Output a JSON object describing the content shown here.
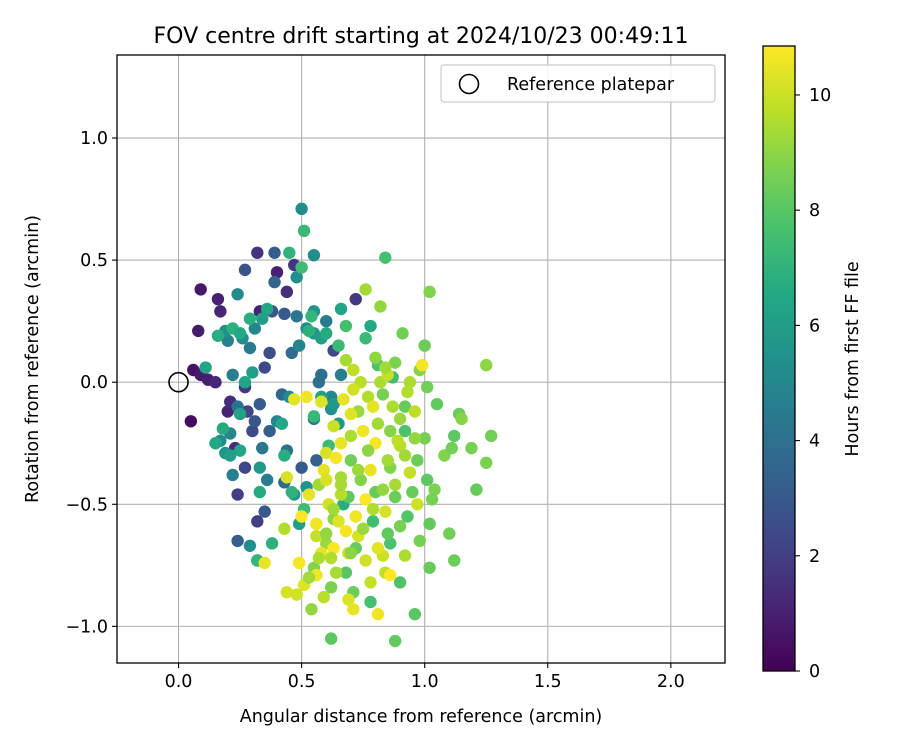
{
  "chart_data": {
    "type": "scatter",
    "title": "FOV centre drift starting at 2024/10/23 00:49:11",
    "xlabel": "Angular distance from reference (arcmin)",
    "ylabel": "Rotation from reference (arcmin)",
    "xlim": [
      -0.25,
      2.22
    ],
    "ylim": [
      -1.15,
      1.34
    ],
    "xticks": [
      0.0,
      0.5,
      1.0,
      1.5,
      2.0
    ],
    "xtick_labels": [
      "0.0",
      "0.5",
      "1.0",
      "1.5",
      "2.0"
    ],
    "yticks": [
      -1.0,
      -0.5,
      0.0,
      0.5,
      1.0
    ],
    "ytick_labels": [
      "−1.0",
      "−0.5",
      "0.0",
      "0.5",
      "1.0"
    ],
    "grid": true,
    "legend": {
      "position": "top-right",
      "entries": [
        {
          "label": "Reference platepar",
          "marker": "open-circle"
        }
      ]
    },
    "reference_point": {
      "x": 0.0,
      "y": 0.0,
      "label": "Reference platepar"
    },
    "colorbar": {
      "label": "Hours from first FF file",
      "colormap": "viridis",
      "range": [
        0,
        10.85
      ],
      "ticks": [
        0,
        2,
        4,
        6,
        8,
        10
      ],
      "tick_labels": [
        "0",
        "2",
        "4",
        "6",
        "8",
        "10"
      ]
    },
    "points": [
      [
        0.06,
        0.05,
        0.5
      ],
      [
        0.09,
        0.38,
        0.7
      ],
      [
        0.08,
        0.21,
        0.8
      ],
      [
        0.09,
        0.03,
        0.8
      ],
      [
        0.12,
        0.01,
        0.9
      ],
      [
        0.16,
        0.34,
        1.0
      ],
      [
        0.17,
        0.29,
        1.1
      ],
      [
        0.05,
        -0.16,
        0.3
      ],
      [
        0.15,
        0.0,
        1.2
      ],
      [
        0.2,
        -0.12,
        1.0
      ],
      [
        0.23,
        -0.27,
        1.3
      ],
      [
        0.24,
        -0.46,
        2.0
      ],
      [
        0.21,
        -0.08,
        1.4
      ],
      [
        0.32,
        0.53,
        1.6
      ],
      [
        0.33,
        0.29,
        1.0
      ],
      [
        0.27,
        0.46,
        2.8
      ],
      [
        0.24,
        -0.65,
        3.2
      ],
      [
        0.27,
        -0.02,
        1.8
      ],
      [
        0.28,
        -0.12,
        2.2
      ],
      [
        0.3,
        -0.2,
        2.5
      ],
      [
        0.35,
        -0.53,
        3.0
      ],
      [
        0.32,
        -0.57,
        2.0
      ],
      [
        0.39,
        0.53,
        3.2
      ],
      [
        0.4,
        0.45,
        1.0
      ],
      [
        0.44,
        0.37,
        1.5
      ],
      [
        0.47,
        0.48,
        1.7
      ],
      [
        0.39,
        0.41,
        3.5
      ],
      [
        0.38,
        0.29,
        2.8
      ],
      [
        0.43,
        0.28,
        3.0
      ],
      [
        0.37,
        0.12,
        2.6
      ],
      [
        0.35,
        0.06,
        2.4
      ],
      [
        0.33,
        -0.09,
        3.1
      ],
      [
        0.31,
        -0.16,
        2.9
      ],
      [
        0.37,
        -0.2,
        3.3
      ],
      [
        0.27,
        -0.35,
        2.3
      ],
      [
        0.42,
        -0.05,
        3.6
      ],
      [
        0.46,
        0.12,
        3.8
      ],
      [
        0.48,
        0.27,
        4.2
      ],
      [
        0.5,
        -0.35,
        3.1
      ],
      [
        0.56,
        -0.32,
        3.4
      ],
      [
        0.57,
        0.0,
        4.1
      ],
      [
        0.58,
        0.03,
        3.9
      ],
      [
        0.63,
        0.13,
        2.4
      ],
      [
        0.72,
        0.34,
        1.8
      ],
      [
        0.55,
        -0.15,
        4.4
      ],
      [
        0.43,
        -0.41,
        3.7
      ],
      [
        0.44,
        -0.28,
        4.0
      ],
      [
        0.34,
        -0.27,
        4.3
      ],
      [
        0.29,
        0.14,
        4.5
      ],
      [
        0.24,
        0.36,
        5.1
      ],
      [
        0.22,
        0.03,
        4.6
      ],
      [
        0.2,
        0.17,
        4.8
      ],
      [
        0.19,
        0.21,
        5.5
      ],
      [
        0.26,
        0.18,
        5.2
      ],
      [
        0.31,
        0.22,
        4.9
      ],
      [
        0.24,
        -0.1,
        4.1
      ],
      [
        0.21,
        -0.21,
        5.0
      ],
      [
        0.17,
        -0.24,
        5.3
      ],
      [
        0.19,
        -0.29,
        5.6
      ],
      [
        0.22,
        -0.38,
        4.7
      ],
      [
        0.33,
        -0.35,
        5.8
      ],
      [
        0.32,
        -0.73,
        5.9
      ],
      [
        0.29,
        -0.67,
        5.4
      ],
      [
        0.36,
        -0.4,
        4.6
      ],
      [
        0.4,
        -0.16,
        5.0
      ],
      [
        0.45,
        -0.06,
        5.1
      ],
      [
        0.49,
        0.15,
        4.9
      ],
      [
        0.52,
        0.22,
        5.2
      ],
      [
        0.55,
        0.29,
        5.6
      ],
      [
        0.48,
        0.43,
        5.4
      ],
      [
        0.5,
        0.71,
        5.2
      ],
      [
        0.55,
        0.52,
        5.3
      ],
      [
        0.55,
        0.2,
        5.7
      ],
      [
        0.58,
        0.18,
        6.0
      ],
      [
        0.6,
        0.25,
        4.5
      ],
      [
        0.62,
        -0.06,
        5.0
      ],
      [
        0.62,
        -0.11,
        5.4
      ],
      [
        0.52,
        -0.43,
        5.5
      ],
      [
        0.47,
        -0.46,
        5.8
      ],
      [
        0.49,
        -0.58,
        6.1
      ],
      [
        0.63,
        -0.09,
        5.8
      ],
      [
        0.58,
        -0.06,
        6.2
      ],
      [
        0.65,
        -0.17,
        5.9
      ],
      [
        0.66,
        0.03,
        4.6
      ],
      [
        0.3,
        0.04,
        6.1
      ],
      [
        0.27,
        0.0,
        6.3
      ],
      [
        0.25,
        -0.13,
        6.2
      ],
      [
        0.25,
        -0.28,
        6.4
      ],
      [
        0.21,
        -0.3,
        6.0
      ],
      [
        0.15,
        -0.25,
        6.5
      ],
      [
        0.18,
        -0.19,
        6.6
      ],
      [
        0.11,
        0.06,
        6.3
      ],
      [
        0.16,
        0.19,
        6.7
      ],
      [
        0.22,
        0.22,
        6.9
      ],
      [
        0.25,
        0.2,
        6.5
      ],
      [
        0.29,
        0.26,
        6.8
      ],
      [
        0.34,
        0.26,
        6.1
      ],
      [
        0.36,
        0.3,
        6.4
      ],
      [
        0.45,
        0.53,
        7.0
      ],
      [
        0.51,
        0.62,
        7.2
      ],
      [
        0.5,
        0.47,
        7.4
      ],
      [
        0.54,
        0.27,
        7.1
      ],
      [
        0.6,
        0.2,
        6.6
      ],
      [
        0.66,
        0.3,
        6.3
      ],
      [
        0.65,
        0.15,
        7.3
      ],
      [
        0.68,
        0.23,
        7.6
      ],
      [
        0.53,
        0.21,
        6.9
      ],
      [
        0.43,
        -0.3,
        6.7
      ],
      [
        0.42,
        -0.17,
        6.5
      ],
      [
        0.33,
        -0.45,
        6.6
      ],
      [
        0.32,
        -0.73,
        7.1
      ],
      [
        0.38,
        -0.66,
        6.9
      ],
      [
        0.46,
        -0.45,
        7.0
      ],
      [
        0.55,
        -0.14,
        7.2
      ],
      [
        0.51,
        -0.52,
        7.4
      ],
      [
        0.61,
        -0.26,
        7.3
      ],
      [
        0.67,
        -0.5,
        6.8
      ],
      [
        0.79,
        -0.57,
        7.5
      ],
      [
        0.76,
        0.18,
        7.3
      ],
      [
        0.78,
        0.23,
        6.5
      ],
      [
        0.84,
        0.51,
        7.6
      ],
      [
        0.81,
        0.07,
        7.8
      ],
      [
        0.87,
        0.02,
        7.5
      ],
      [
        0.92,
        -0.2,
        7.7
      ],
      [
        0.93,
        -0.55,
        7.9
      ],
      [
        0.86,
        -0.66,
        7.7
      ],
      [
        0.9,
        -0.82,
        7.8
      ],
      [
        0.78,
        -0.9,
        7.6
      ],
      [
        0.62,
        -1.05,
        8.1
      ],
      [
        0.88,
        -1.06,
        8.2
      ],
      [
        0.96,
        -0.95,
        8.0
      ],
      [
        1.02,
        -0.76,
        8.3
      ],
      [
        1.12,
        -0.73,
        8.4
      ],
      [
        1.1,
        -0.62,
        8.5
      ],
      [
        1.02,
        -0.58,
        8.2
      ],
      [
        0.98,
        -0.65,
        8.6
      ],
      [
        0.95,
        -0.45,
        8.3
      ],
      [
        1.01,
        -0.4,
        8.1
      ],
      [
        1.04,
        -0.44,
        8.7
      ],
      [
        1.03,
        -0.48,
        8.6
      ],
      [
        1.08,
        -0.3,
        8.8
      ],
      [
        1.11,
        -0.27,
        8.5
      ],
      [
        1.14,
        -0.13,
        8.4
      ],
      [
        1.15,
        -0.15,
        8.9
      ],
      [
        1.12,
        -0.22,
        8.1
      ],
      [
        1.19,
        -0.27,
        8.6
      ],
      [
        1.21,
        -0.44,
        8.3
      ],
      [
        1.25,
        -0.33,
        8.7
      ],
      [
        1.27,
        -0.22,
        8.5
      ],
      [
        1.25,
        0.07,
        9.0
      ],
      [
        1.02,
        0.37,
        8.8
      ],
      [
        1.0,
        0.15,
        8.4
      ],
      [
        0.98,
        0.05,
        8.9
      ],
      [
        1.01,
        -0.02,
        8.5
      ],
      [
        1.05,
        -0.09,
        8.2
      ],
      [
        1.0,
        -0.23,
        8.6
      ],
      [
        0.97,
        -0.32,
        8.4
      ],
      [
        0.92,
        -0.1,
        8.3
      ],
      [
        0.88,
        0.08,
        8.7
      ],
      [
        0.91,
        0.2,
        8.5
      ],
      [
        0.82,
        0.31,
        9.1
      ],
      [
        0.76,
        0.38,
        9.3
      ],
      [
        0.8,
        0.1,
        9.0
      ],
      [
        0.83,
        -0.05,
        8.6
      ],
      [
        0.86,
        -0.2,
        8.9
      ],
      [
        0.86,
        -0.35,
        8.8
      ],
      [
        0.88,
        -0.47,
        8.4
      ],
      [
        0.9,
        -0.59,
        8.6
      ],
      [
        0.85,
        -0.62,
        8.2
      ],
      [
        0.8,
        -0.45,
        8.3
      ],
      [
        0.74,
        -0.4,
        8.8
      ],
      [
        0.7,
        -0.32,
        8.5
      ],
      [
        0.69,
        -0.47,
        8.1
      ],
      [
        0.72,
        -0.68,
        8.3
      ],
      [
        0.68,
        -0.78,
        8.0
      ],
      [
        0.71,
        -0.86,
        8.4
      ],
      [
        0.62,
        -0.84,
        8.7
      ],
      [
        0.55,
        -0.76,
        8.8
      ],
      [
        0.54,
        -0.93,
        9.1
      ],
      [
        0.6,
        -0.66,
        9.2
      ],
      [
        0.63,
        -0.56,
        9.0
      ],
      [
        0.57,
        -0.42,
        9.3
      ],
      [
        0.66,
        -0.39,
        9.4
      ],
      [
        0.7,
        -0.22,
        9.5
      ],
      [
        0.73,
        -0.12,
        9.2
      ],
      [
        0.77,
        -0.06,
        9.6
      ],
      [
        0.74,
        0.0,
        9.7
      ],
      [
        0.68,
        0.09,
        9.4
      ],
      [
        0.71,
        0.05,
        9.8
      ],
      [
        0.82,
        0.0,
        9.5
      ],
      [
        0.85,
        0.03,
        9.9
      ],
      [
        0.93,
        -0.04,
        9.6
      ],
      [
        0.96,
        -0.12,
        9.8
      ],
      [
        0.9,
        -0.26,
        9.7
      ],
      [
        0.94,
        -0.37,
        9.9
      ],
      [
        0.97,
        -0.5,
        10.0
      ],
      [
        0.92,
        -0.71,
        9.5
      ],
      [
        0.84,
        -0.78,
        9.8
      ],
      [
        0.83,
        -0.71,
        10.0
      ],
      [
        0.78,
        -0.82,
        9.9
      ],
      [
        0.76,
        -0.73,
        10.1
      ],
      [
        0.73,
        -0.63,
        10.2
      ],
      [
        0.69,
        -0.7,
        10.0
      ],
      [
        0.65,
        -0.57,
        10.3
      ],
      [
        0.61,
        -0.5,
        10.1
      ],
      [
        0.59,
        -0.36,
        10.4
      ],
      [
        0.6,
        -0.29,
        10.2
      ],
      [
        0.66,
        -0.25,
        10.5
      ],
      [
        0.7,
        -0.13,
        10.3
      ],
      [
        0.75,
        -0.2,
        10.6
      ],
      [
        0.79,
        -0.1,
        10.4
      ],
      [
        0.8,
        -0.25,
        10.7
      ],
      [
        0.78,
        -0.36,
        10.5
      ],
      [
        0.76,
        -0.48,
        10.8
      ],
      [
        0.72,
        -0.55,
        10.6
      ],
      [
        0.68,
        -0.61,
        10.7
      ],
      [
        0.63,
        -0.68,
        10.8
      ],
      [
        0.58,
        -0.7,
        10.5
      ],
      [
        0.56,
        -0.79,
        10.6
      ],
      [
        0.51,
        -0.83,
        10.3
      ],
      [
        0.49,
        -0.74,
        10.7
      ],
      [
        0.44,
        -0.86,
        10.2
      ],
      [
        0.5,
        -0.55,
        10.8
      ],
      [
        0.53,
        -0.46,
        10.4
      ],
      [
        0.56,
        -0.58,
        10.6
      ],
      [
        0.6,
        -0.4,
        10.2
      ],
      [
        0.64,
        -0.31,
        10.7
      ],
      [
        0.63,
        -0.18,
        10.0
      ],
      [
        0.67,
        -0.07,
        10.5
      ],
      [
        0.71,
        -0.03,
        10.1
      ],
      [
        0.58,
        -0.08,
        10.3
      ],
      [
        0.52,
        -0.06,
        10.6
      ],
      [
        0.47,
        -0.07,
        10.4
      ],
      [
        0.44,
        -0.39,
        10.2
      ],
      [
        0.35,
        -0.74,
        10.5
      ],
      [
        0.43,
        -0.6,
        9.6
      ],
      [
        0.48,
        -0.87,
        10.1
      ],
      [
        0.56,
        -0.63,
        9.9
      ],
      [
        0.62,
        -0.72,
        9.6
      ],
      [
        0.66,
        -0.46,
        9.7
      ],
      [
        0.69,
        -0.89,
        10.3
      ],
      [
        0.71,
        -0.93,
        10.5
      ],
      [
        0.81,
        -0.95,
        10.6
      ],
      [
        0.86,
        -0.79,
        10.8
      ],
      [
        0.81,
        -0.68,
        10.4
      ],
      [
        0.84,
        -0.53,
        10.2
      ],
      [
        0.88,
        -0.42,
        9.4
      ],
      [
        0.92,
        -0.3,
        9.3
      ],
      [
        0.96,
        -0.23,
        9.1
      ],
      [
        0.99,
        0.07,
        10.7
      ],
      [
        0.94,
        0.0,
        9.5
      ],
      [
        0.9,
        -0.15,
        9.2
      ],
      [
        0.81,
        -0.17,
        9.3
      ],
      [
        0.77,
        -0.28,
        9.0
      ],
      [
        0.73,
        -0.36,
        9.2
      ],
      [
        0.66,
        -0.42,
        9.4
      ],
      [
        0.63,
        -0.52,
        9.3
      ],
      [
        0.6,
        -0.62,
        9.1
      ],
      [
        0.57,
        -0.72,
        9.5
      ],
      [
        0.53,
        -0.8,
        9.3
      ],
      [
        0.59,
        -0.88,
        9.7
      ],
      [
        0.64,
        -0.78,
        9.4
      ],
      [
        0.7,
        -0.7,
        9.0
      ],
      [
        0.75,
        -0.6,
        9.2
      ],
      [
        0.79,
        -0.52,
        9.6
      ],
      [
        0.83,
        -0.44,
        9.1
      ],
      [
        0.85,
        -0.32,
        9.4
      ],
      [
        0.89,
        -0.24,
        9.8
      ],
      [
        0.87,
        -0.1,
        9.5
      ],
      [
        0.84,
        0.06,
        9.3
      ]
    ]
  }
}
